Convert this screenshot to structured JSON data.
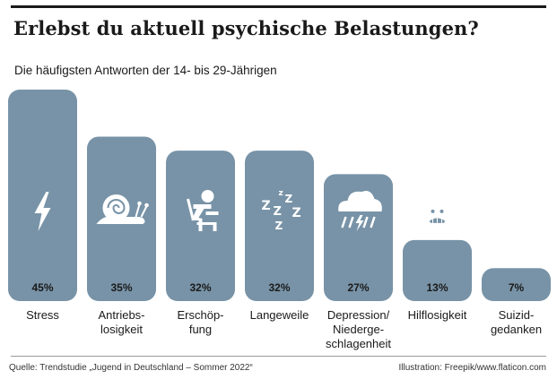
{
  "header": {
    "title": "Erlebst du aktuell psychische Belastungen?",
    "subtitle": "Die häufigsten Antworten der 14- bis 29-Jährigen"
  },
  "footer": {
    "source": "Quelle: Trendstudie „Jugend in Deutschland – Sommer 2022“",
    "credit": "Illustration: Freepik/www.flaticon.com"
  },
  "colors": {
    "bar": "#7893a7",
    "icon": "#ffffff",
    "text": "#1a1a1a",
    "rule": "#1a1a1a"
  },
  "chart_data": {
    "type": "bar",
    "title": "Erlebst du aktuell psychische Belastungen?",
    "subtitle": "Die häufigsten Antworten der 14- bis 29-Jährigen",
    "unit": "%",
    "ylim": [
      0,
      45
    ],
    "grid": false,
    "categories": [
      {
        "label": [
          "Stress"
        ],
        "value": 45,
        "value_label": "45%",
        "icon": "lightning-icon"
      },
      {
        "label": [
          "Antriebs-",
          "losigkeit"
        ],
        "value": 35,
        "value_label": "35%",
        "icon": "snail-icon"
      },
      {
        "label": [
          "Erschöp-",
          "fung"
        ],
        "value": 32,
        "value_label": "32%",
        "icon": "tired-person-at-desk-icon"
      },
      {
        "label": [
          "Langeweile"
        ],
        "value": 32,
        "value_label": "32%",
        "icon": "zzz-sleep-icon"
      },
      {
        "label": [
          "Depression/",
          "Niederge-",
          "schlagenheit"
        ],
        "value": 27,
        "value_label": "27%",
        "icon": "storm-cloud-icon"
      },
      {
        "label": [
          "Hilflosigkeit"
        ],
        "value": 13,
        "value_label": "13%",
        "icon": "worried-face-icon"
      },
      {
        "label": [
          "Suizid-",
          "gedanken"
        ],
        "value": 7,
        "value_label": "7%",
        "icon": "cross-icon"
      }
    ]
  }
}
